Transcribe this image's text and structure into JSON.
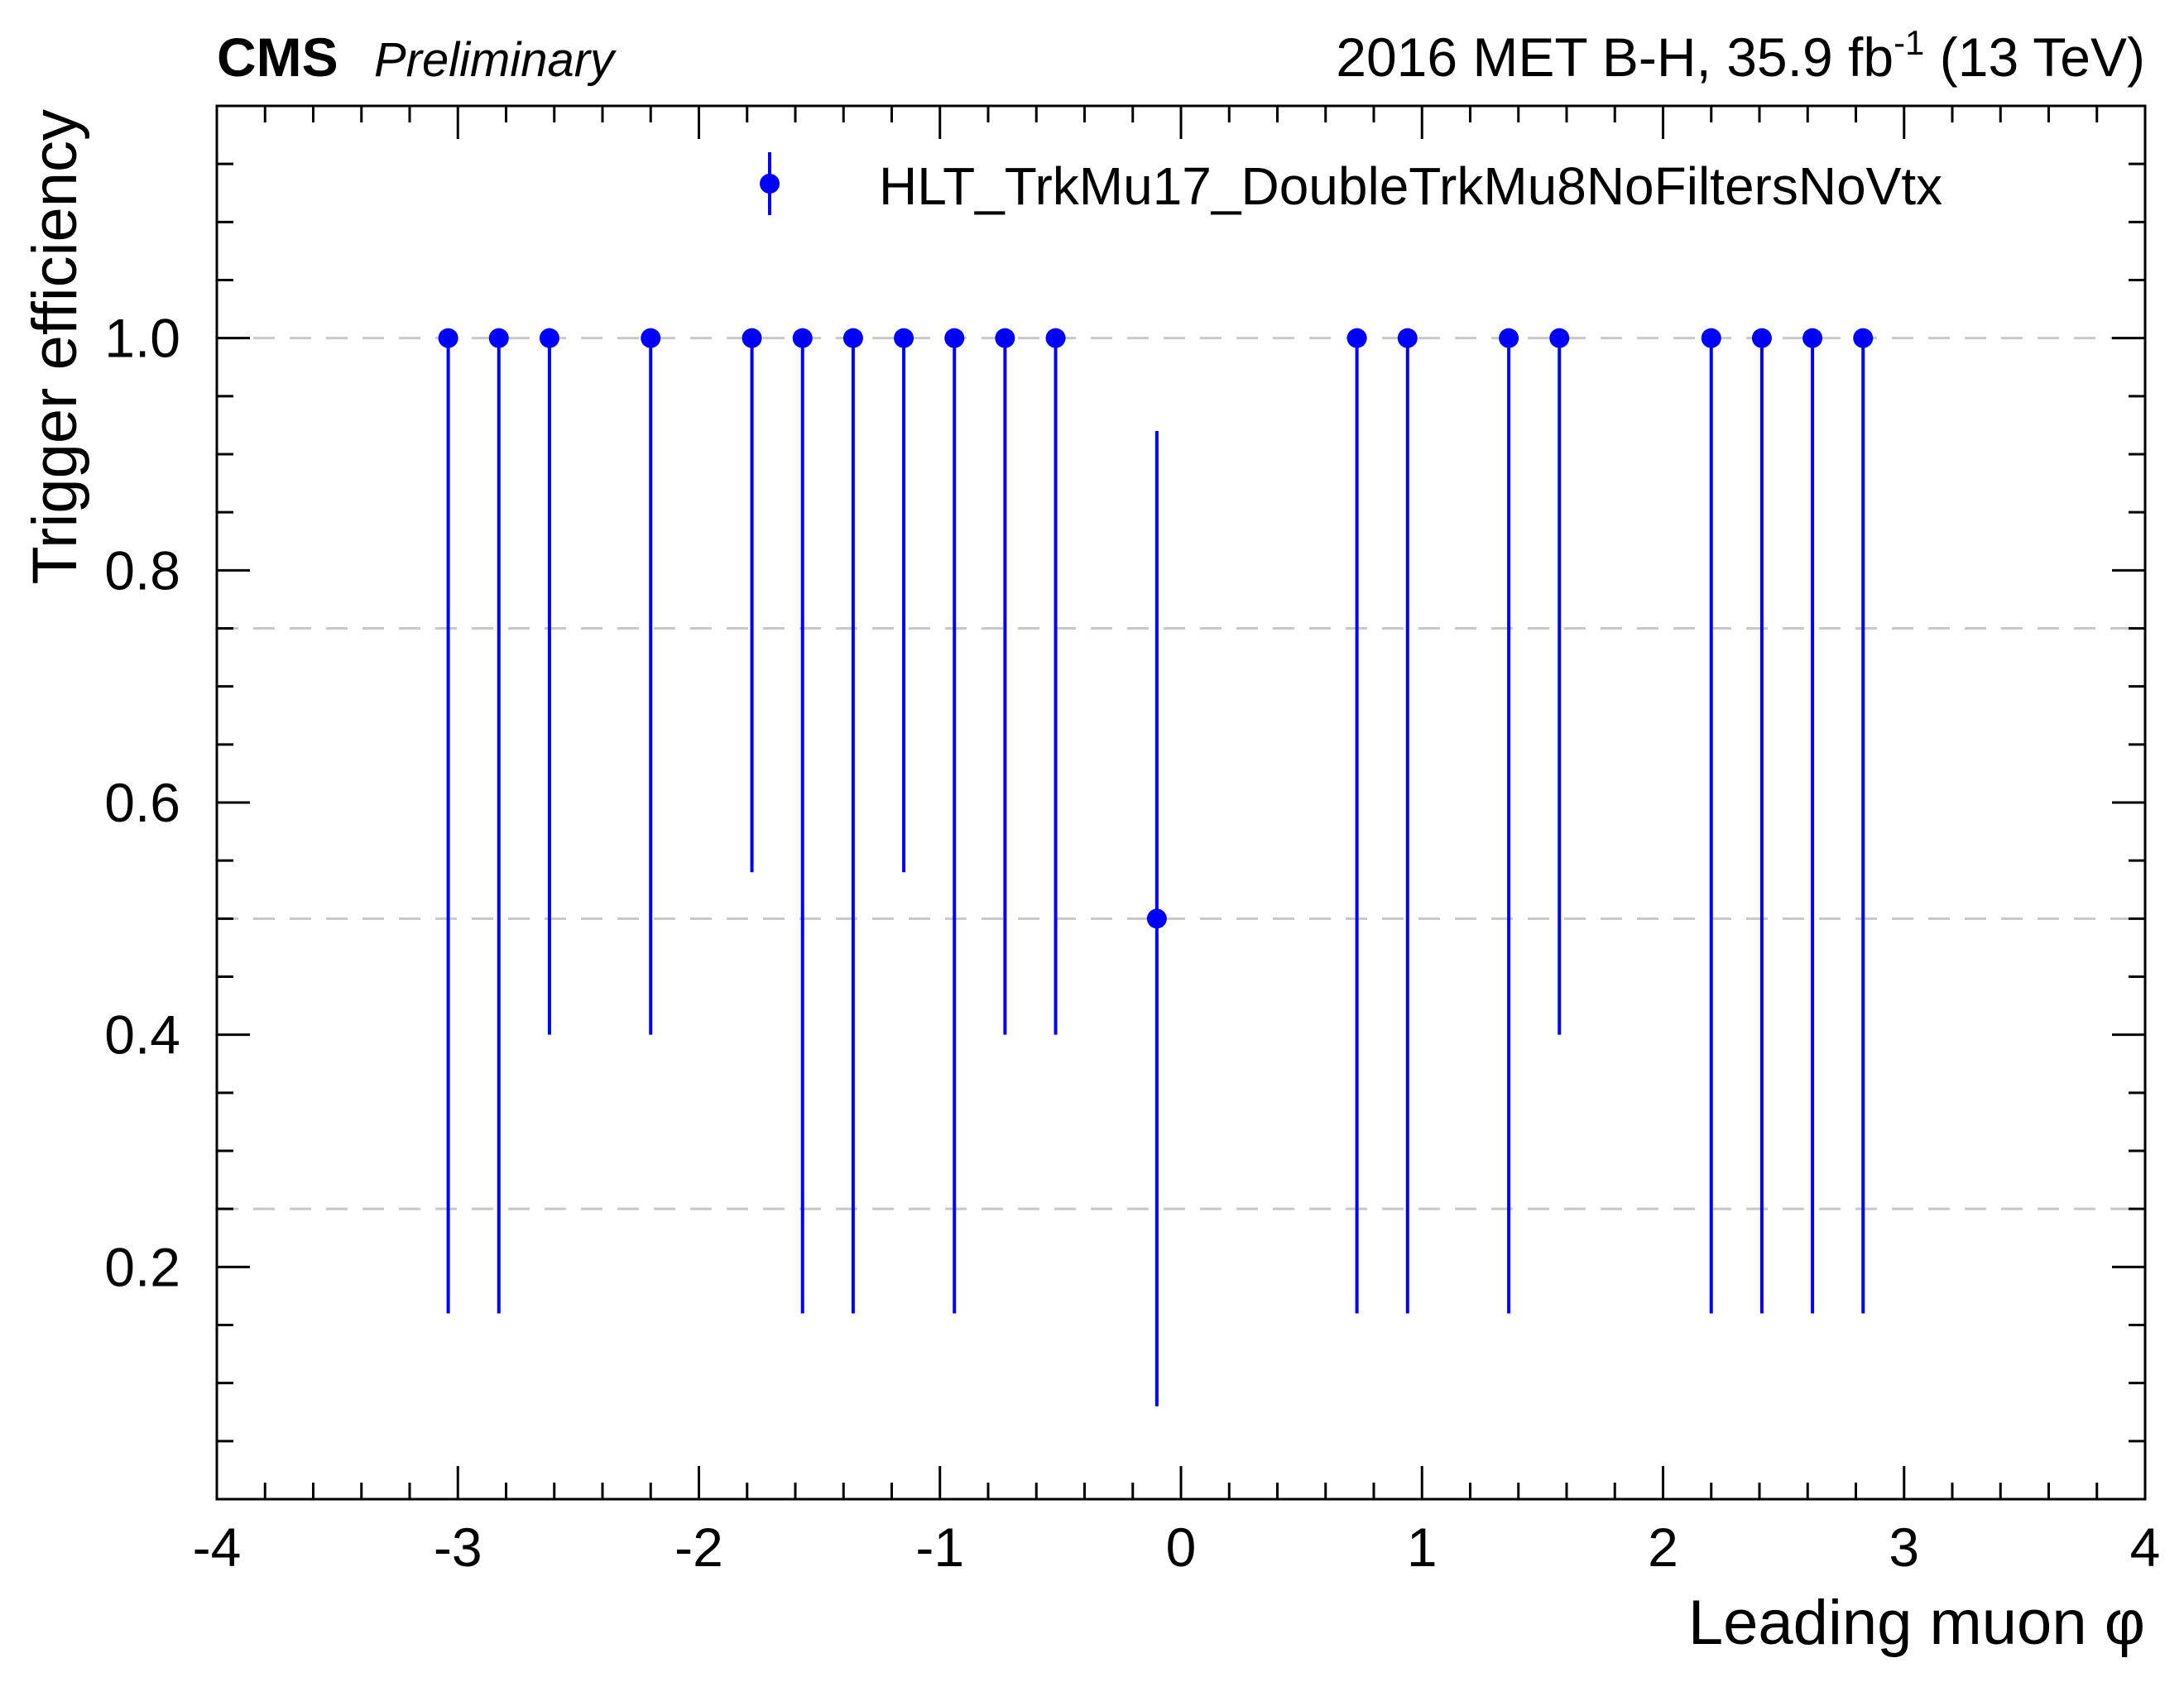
{
  "header": {
    "experiment": "CMS",
    "status": "Preliminary",
    "lumi_prefix": "2016 MET B-H, 35.9 fb",
    "lumi_exponent": "-1",
    "lumi_suffix": " (13 TeV)"
  },
  "chart_data": {
    "type": "scatter",
    "xlabel": "Leading muon φ",
    "ylabel": "Trigger efficiency",
    "xlim": [
      -4,
      4
    ],
    "ylim": [
      0,
      1.2
    ],
    "x_ticks": [
      -4,
      -3,
      -2,
      -1,
      0,
      1,
      2,
      3,
      4
    ],
    "x_tick_labels": [
      "-4",
      "-3",
      "-2",
      "-1",
      "0",
      "1",
      "2",
      "3",
      "4"
    ],
    "y_ticks": [
      0.2,
      0.4,
      0.6,
      0.8,
      1.0
    ],
    "y_tick_labels": [
      "0.2",
      "0.4",
      "0.6",
      "0.8",
      "1.0"
    ],
    "gridlines_y": [
      0.25,
      0.5,
      0.75,
      1.0
    ],
    "legend_position": "top-right",
    "series": [
      {
        "name": "HLT_TrkMu17_DoubleTrkMu8NoFiltersNoVtx",
        "color": "#0000ff",
        "points": [
          {
            "x": -3.04,
            "y": 1.0,
            "ylow": 0.16
          },
          {
            "x": -2.83,
            "y": 1.0,
            "ylow": 0.16
          },
          {
            "x": -2.62,
            "y": 1.0,
            "ylow": 0.4
          },
          {
            "x": -2.2,
            "y": 1.0,
            "ylow": 0.4
          },
          {
            "x": -1.78,
            "y": 1.0,
            "ylow": 0.54
          },
          {
            "x": -1.57,
            "y": 1.0,
            "ylow": 0.16
          },
          {
            "x": -1.36,
            "y": 1.0,
            "ylow": 0.16
          },
          {
            "x": -1.15,
            "y": 1.0,
            "ylow": 0.54
          },
          {
            "x": -0.94,
            "y": 1.0,
            "ylow": 0.16
          },
          {
            "x": -0.73,
            "y": 1.0,
            "ylow": 0.4
          },
          {
            "x": -0.52,
            "y": 1.0,
            "ylow": 0.4
          },
          {
            "x": -0.1,
            "y": 0.5,
            "ylow": 0.08,
            "yhigh": 0.92
          },
          {
            "x": 0.73,
            "y": 1.0,
            "ylow": 0.16
          },
          {
            "x": 0.94,
            "y": 1.0,
            "ylow": 0.16
          },
          {
            "x": 1.36,
            "y": 1.0,
            "ylow": 0.16
          },
          {
            "x": 1.57,
            "y": 1.0,
            "ylow": 0.4
          },
          {
            "x": 2.2,
            "y": 1.0,
            "ylow": 0.16
          },
          {
            "x": 2.41,
            "y": 1.0,
            "ylow": 0.16
          },
          {
            "x": 2.62,
            "y": 1.0,
            "ylow": 0.16
          },
          {
            "x": 2.83,
            "y": 1.0,
            "ylow": 0.16
          }
        ]
      }
    ]
  }
}
